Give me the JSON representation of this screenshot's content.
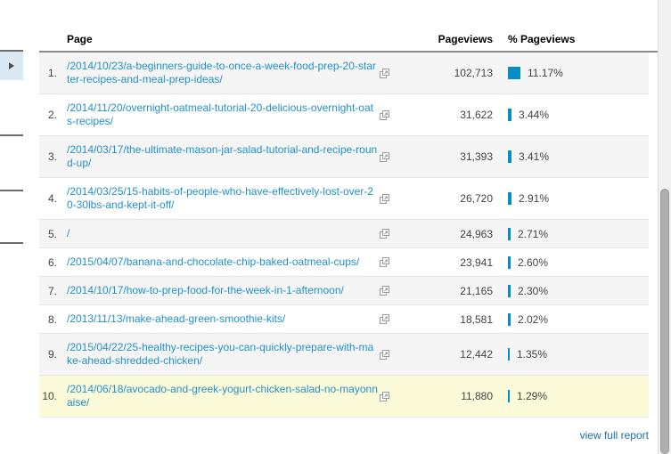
{
  "table": {
    "headers": {
      "page": "Page",
      "pageviews": "Pageviews",
      "pct_pageviews": "% Pageviews"
    },
    "rows": [
      {
        "rank": "1.",
        "page": "/2014/10/23/a-beginners-guide-to-once-a-week-food-prep-20-starter-recipes-and-meal-prep-ideas/",
        "pageviews": "102,713",
        "pct": "11.17%",
        "pct_value": 11.17,
        "highlight": false
      },
      {
        "rank": "2.",
        "page": "/2014/11/20/overnight-oatmeal-tutorial-20-delicious-overnight-oats-recipes/",
        "pageviews": "31,622",
        "pct": "3.44%",
        "pct_value": 3.44,
        "highlight": false
      },
      {
        "rank": "3.",
        "page": "/2014/03/17/the-ultimate-mason-jar-salad-tutorial-and-recipe-round-up/",
        "pageviews": "31,393",
        "pct": "3.41%",
        "pct_value": 3.41,
        "highlight": false
      },
      {
        "rank": "4.",
        "page": "/2014/03/25/15-habits-of-people-who-have-effectively-lost-over-20-30lbs-and-kept-it-off/",
        "pageviews": "26,720",
        "pct": "2.91%",
        "pct_value": 2.91,
        "highlight": false
      },
      {
        "rank": "5.",
        "page": "/",
        "pageviews": "24,963",
        "pct": "2.71%",
        "pct_value": 2.71,
        "highlight": false
      },
      {
        "rank": "6.",
        "page": "/2015/04/07/banana-and-chocolate-chip-baked-oatmeal-cups/",
        "pageviews": "23,941",
        "pct": "2.60%",
        "pct_value": 2.6,
        "highlight": false
      },
      {
        "rank": "7.",
        "page": "/2014/10/17/how-to-prep-food-for-the-week-in-1-afternoon/",
        "pageviews": "21,165",
        "pct": "2.30%",
        "pct_value": 2.3,
        "highlight": false
      },
      {
        "rank": "8.",
        "page": "/2013/11/13/make-ahead-green-smoothie-kits/",
        "pageviews": "18,581",
        "pct": "2.02%",
        "pct_value": 2.02,
        "highlight": false
      },
      {
        "rank": "9.",
        "page": "/2015/04/22/25-healthy-recipes-you-can-quickly-prepare-with-make-ahead-shredded-chicken/",
        "pageviews": "12,442",
        "pct": "1.35%",
        "pct_value": 1.35,
        "highlight": false
      },
      {
        "rank": "10.",
        "page": "/2014/06/18/avocado-and-greek-yogurt-chicken-salad-no-mayonnaise/",
        "pageviews": "11,880",
        "pct": "1.29%",
        "pct_value": 1.29,
        "highlight": true
      }
    ],
    "footer_link": "view full report"
  },
  "colors": {
    "bar": "#058dc7",
    "link": "#2191c9",
    "footer_link": "#1a71a6",
    "row_alt_bg": "#f5f5f5",
    "row_highlight_bg": "#fcfbd9",
    "header_border": "#8a8a8a",
    "expander_bg": "#d9eaf5"
  },
  "icons": {
    "external_link": "external-link-icon",
    "caret_right": "caret-right-icon"
  }
}
